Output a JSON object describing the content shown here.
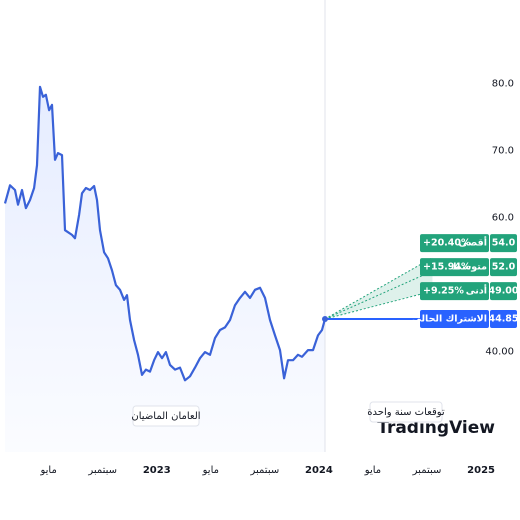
{
  "chart_data": {
    "type": "line",
    "x": [
      0.77,
      1.14,
      1.51,
      1.73,
      2.03,
      2.32,
      2.62,
      2.92,
      3.14,
      3.36,
      3.58,
      3.8,
      4.03,
      4.25,
      4.47,
      4.69,
      4.99,
      5.21,
      5.43,
      5.73,
      5.95,
      6.25,
      6.47,
      6.76,
      7.06,
      7.36,
      7.58,
      7.8,
      8.1,
      8.39,
      8.69,
      8.98,
      9.28,
      9.58,
      9.8,
      10.02,
      10.32,
      10.61,
      10.91,
      11.2,
      11.5,
      11.8,
      12.09,
      12.39,
      12.68,
      12.98,
      13.35,
      13.72,
      14.09,
      14.46,
      14.83,
      15.2,
      15.57,
      15.94,
      16.31,
      16.68,
      17.05,
      17.42,
      17.79,
      18.16,
      18.53,
      18.9,
      19.27,
      19.64,
      20.01,
      20.38,
      20.75,
      21.12,
      21.42,
      21.71,
      22.08,
      22.45,
      22.75,
      23.19,
      23.56,
      23.93,
      24.23,
      24.45
    ],
    "series": [
      {
        "color": "#3a62d8",
        "values": [
          62.1,
          64.8,
          64.1,
          61.9,
          64.1,
          61.4,
          62.6,
          64.4,
          67.8,
          79.5,
          78.0,
          78.3,
          76.0,
          76.8,
          68.6,
          69.6,
          69.3,
          58.1,
          57.8,
          57.4,
          56.9,
          60.4,
          63.6,
          64.4,
          64.1,
          64.7,
          62.6,
          58.1,
          54.8,
          53.9,
          52.1,
          49.9,
          49.2,
          47.7,
          48.4,
          44.7,
          41.7,
          39.5,
          36.5,
          37.3,
          37.0,
          38.7,
          39.9,
          39.0,
          39.9,
          38.0,
          37.3,
          37.6,
          35.7,
          36.3,
          37.6,
          39.0,
          39.9,
          39.5,
          42.0,
          43.2,
          43.6,
          44.7,
          46.9,
          48.0,
          48.9,
          48.0,
          49.2,
          49.5,
          48.0,
          44.7,
          42.4,
          40.2,
          36.0,
          38.7,
          38.7,
          39.5,
          39.2,
          40.2,
          40.2,
          42.4,
          43.2,
          44.85
        ]
      }
    ],
    "xlim": [
      0.4,
      37.4
    ],
    "xticks": [
      {
        "value": 4,
        "label": "مايو"
      },
      {
        "value": 8,
        "label": "سبتمبر"
      },
      {
        "value": 12,
        "label": "2023"
      },
      {
        "value": 16,
        "label": "مايو"
      },
      {
        "value": 20,
        "label": "سبتمبر"
      },
      {
        "value": 24,
        "label": "2024"
      },
      {
        "value": 28,
        "label": "مايو"
      },
      {
        "value": 32,
        "label": "سبتمبر"
      },
      {
        "value": 36,
        "label": "2025"
      }
    ],
    "ylim": [
      25,
      92
    ],
    "yticks": [
      {
        "value": 40,
        "label": "40.00"
      },
      {
        "value": 60,
        "label": "60.0"
      },
      {
        "value": 70,
        "label": "70.0"
      },
      {
        "value": 80,
        "label": "80.0"
      }
    ],
    "forecast": {
      "x_end": 32.4,
      "color": "#22a37b",
      "targets": [
        {
          "label": "أقصى",
          "change": "+20.40%",
          "value": 54.0,
          "value_label": "54.0"
        },
        {
          "label": "متوسط",
          "change": "+15.94%",
          "value": 52.0,
          "value_label": "52.0"
        },
        {
          "label": "أدنى",
          "change": "+9.25%",
          "value": 49.0,
          "value_label": "49.00"
        }
      ],
      "current": {
        "label": "الاشتراك الحالي",
        "value": 44.85,
        "color": "#2962ff"
      }
    },
    "past_caption": "العامان الماضيان",
    "forecast_caption": "توقعات سنة واحدة",
    "watermark": "TradingView"
  }
}
